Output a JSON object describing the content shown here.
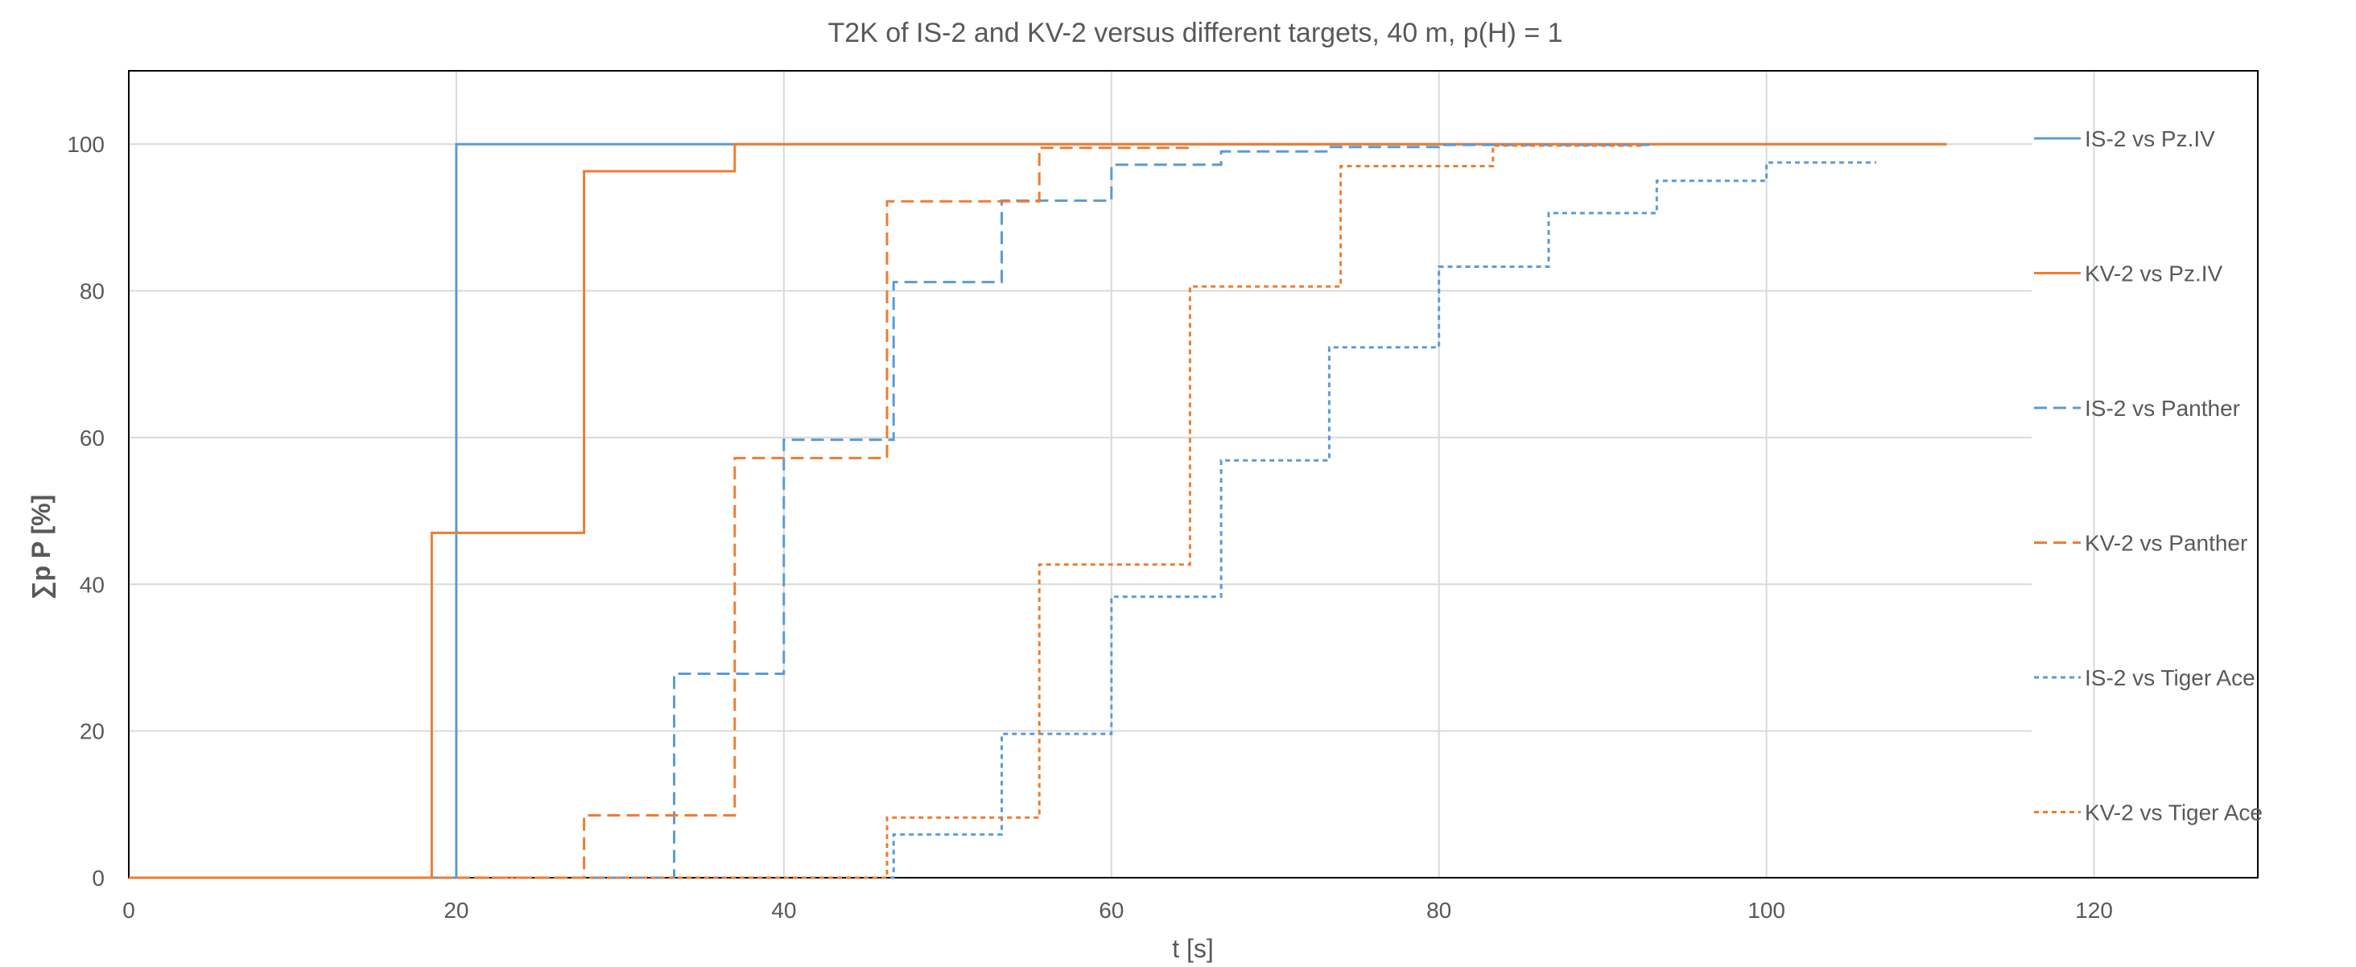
{
  "chart_data": {
    "type": "line",
    "title": "T2K of IS-2 and KV-2 versus different targets, 40 m, p(H) = 1",
    "xlabel": "t [s]",
    "ylabel": "∑p P [%]",
    "xlim": [
      0,
      130
    ],
    "ylim": [
      0,
      110
    ],
    "xticks": [
      0,
      20,
      40,
      60,
      80,
      100,
      120
    ],
    "yticks": [
      0,
      20,
      40,
      60,
      80,
      100
    ],
    "grid": true,
    "legend_position": "right",
    "series": [
      {
        "name": "IS-2 vs Pz.IV",
        "color": "#5b9bd5",
        "dash": "solid",
        "points": [
          [
            0,
            0
          ],
          [
            20,
            0
          ],
          [
            20,
            100
          ],
          [
            111,
            100
          ]
        ]
      },
      {
        "name": "KV-2 vs Pz.IV",
        "color": "#ed7d31",
        "dash": "solid",
        "points": [
          [
            0,
            0
          ],
          [
            18.5,
            0
          ],
          [
            18.5,
            47
          ],
          [
            27.8,
            47
          ],
          [
            27.8,
            96.3
          ],
          [
            37,
            96.3
          ],
          [
            37,
            100
          ],
          [
            111,
            100
          ]
        ]
      },
      {
        "name": "IS-2 vs Panther",
        "color": "#5b9bd5",
        "dash": "dash",
        "points": [
          [
            0,
            0
          ],
          [
            33.3,
            0
          ],
          [
            33.3,
            27.8
          ],
          [
            40,
            27.8
          ],
          [
            40,
            59.7
          ],
          [
            46.7,
            59.7
          ],
          [
            46.7,
            81.2
          ],
          [
            53.3,
            81.2
          ],
          [
            53.3,
            92.3
          ],
          [
            60,
            92.3
          ],
          [
            60,
            97.2
          ],
          [
            66.7,
            97.2
          ],
          [
            66.7,
            99
          ],
          [
            73.3,
            99
          ],
          [
            73.3,
            99.6
          ],
          [
            80,
            99.6
          ],
          [
            80,
            99.9
          ],
          [
            93,
            99.9
          ]
        ]
      },
      {
        "name": "KV-2 vs Panther",
        "color": "#ed7d31",
        "dash": "dash",
        "points": [
          [
            0,
            0
          ],
          [
            27.8,
            0
          ],
          [
            27.8,
            8.5
          ],
          [
            37,
            8.5
          ],
          [
            37,
            57.2
          ],
          [
            46.3,
            57.2
          ],
          [
            46.3,
            92.2
          ],
          [
            55.6,
            92.2
          ],
          [
            55.6,
            99.5
          ],
          [
            64.8,
            99.5
          ],
          [
            64.8,
            100
          ],
          [
            74,
            100
          ]
        ]
      },
      {
        "name": "IS-2 vs Tiger Ace",
        "color": "#5b9bd5",
        "dash": "dot",
        "points": [
          [
            0,
            0
          ],
          [
            46.7,
            0
          ],
          [
            46.7,
            5.9
          ],
          [
            53.3,
            5.9
          ],
          [
            53.3,
            19.6
          ],
          [
            60,
            19.6
          ],
          [
            60,
            38.3
          ],
          [
            66.7,
            38.3
          ],
          [
            66.7,
            56.9
          ],
          [
            73.3,
            56.9
          ],
          [
            73.3,
            72.3
          ],
          [
            80,
            72.3
          ],
          [
            80,
            83.3
          ],
          [
            86.7,
            83.3
          ],
          [
            86.7,
            90.6
          ],
          [
            93.3,
            90.6
          ],
          [
            93.3,
            95
          ],
          [
            100,
            95
          ],
          [
            100,
            97.5
          ],
          [
            106.7,
            97.5
          ]
        ]
      },
      {
        "name": "KV-2 vs Tiger Ace",
        "color": "#ed7d31",
        "dash": "dot",
        "points": [
          [
            0,
            0
          ],
          [
            46.3,
            0
          ],
          [
            46.3,
            8.2
          ],
          [
            55.6,
            8.2
          ],
          [
            55.6,
            42.7
          ],
          [
            64.8,
            42.7
          ],
          [
            64.8,
            80.6
          ],
          [
            74,
            80.6
          ],
          [
            74,
            97
          ],
          [
            83.3,
            97
          ],
          [
            83.3,
            99.8
          ],
          [
            92.5,
            99.8
          ]
        ]
      }
    ]
  }
}
